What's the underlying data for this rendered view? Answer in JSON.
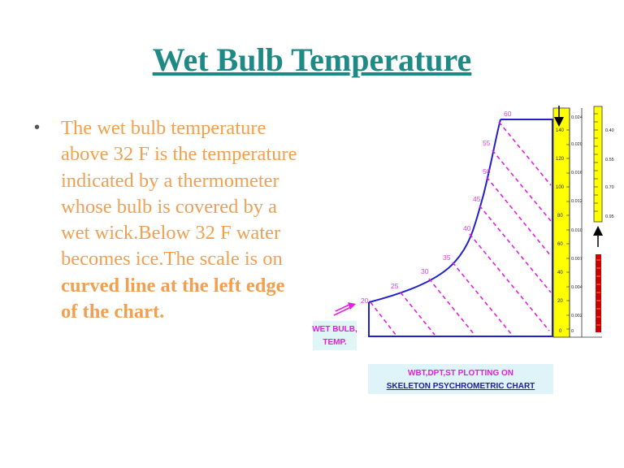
{
  "slide": {
    "title": "Wet Bulb Temperature",
    "bullet": {
      "plain": "The wet bulb temperature above 32 F is the temperature indicated by a thermometer whose bulb is covered by a wet wick.Below 32 F water becomes ice.The scale is on ",
      "bold": "curved line at the left edge of the chart."
    }
  },
  "diagram": {
    "wbt_labels": [
      "20",
      "25",
      "30",
      "35",
      "40",
      "45",
      "50",
      "55",
      "60"
    ],
    "db_scale_labels": [
      "140",
      "120",
      "100",
      "80",
      "60",
      "40",
      "20",
      "0"
    ],
    "humidity_labels": [
      "0.024",
      "0.020",
      "0.016",
      "0.012",
      "0.010",
      "0.007",
      "0.004",
      "0.002",
      "0"
    ],
    "right_scale_labels": [
      "0.40",
      "0.55",
      "0.70",
      "0.95"
    ],
    "callout": {
      "line1": "WET BULB,",
      "line2": "TEMP."
    },
    "caption": {
      "line1": "WBT,DPT,ST  PLOTTING ON",
      "line2": "SKELETON PSYCHROMETRIC CHART"
    },
    "colors": {
      "curve": "#2020cc",
      "dashed_lines": "#e020e0",
      "wbt_label_text": "#e040e0",
      "scale_yellow": "#ffff00",
      "callout_bg": "#e0f5f5",
      "caption_bg": "#dff4f8",
      "red_strip": "#cc0000",
      "caption_text": "#2020a0",
      "callout_text": "#e020e0"
    }
  }
}
